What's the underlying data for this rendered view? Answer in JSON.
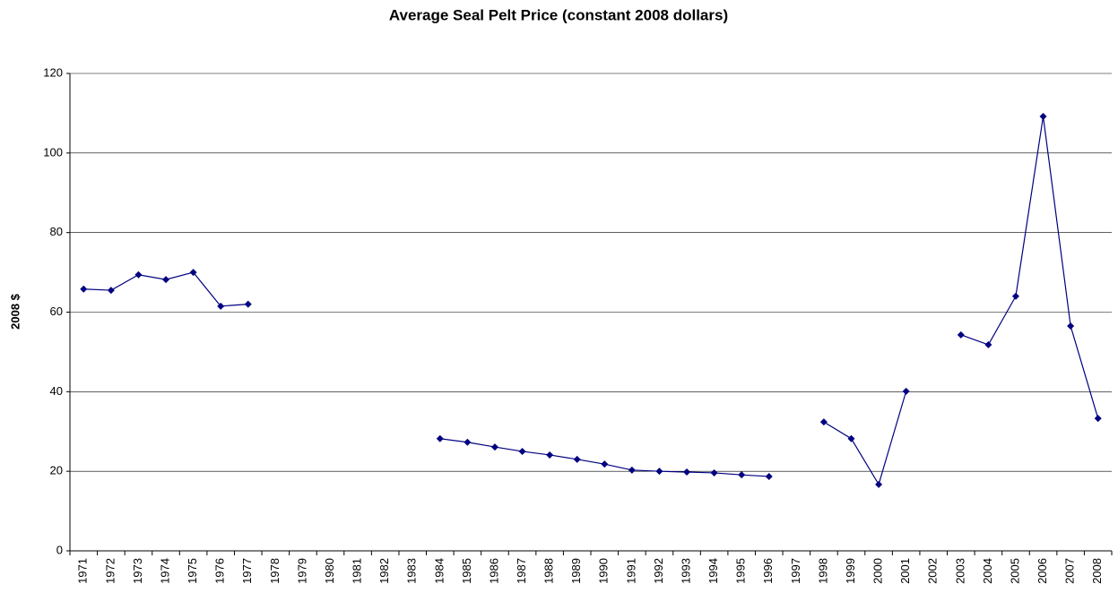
{
  "chart_data": {
    "type": "line",
    "title": "Average Seal Pelt Price (constant 2008 dollars)",
    "y_label": "2008 $",
    "categories": [
      "1971",
      "1972",
      "1973",
      "1974",
      "1975",
      "1976",
      "1977",
      "1978",
      "1979",
      "1980",
      "1981",
      "1982",
      "1983",
      "1984",
      "1985",
      "1986",
      "1987",
      "1988",
      "1989",
      "1990",
      "1991",
      "1992",
      "1993",
      "1994",
      "1995",
      "1996",
      "1997",
      "1998",
      "1999",
      "2000",
      "2001",
      "2002",
      "2003",
      "2004",
      "2005",
      "2006",
      "2007",
      "2008"
    ],
    "series": [
      {
        "name": "Average Seal Pelt Price",
        "color": "#000080",
        "values": [
          65.8,
          65.5,
          69.4,
          68.2,
          70.0,
          61.5,
          62.0,
          null,
          null,
          null,
          null,
          null,
          null,
          28.2,
          27.3,
          26.1,
          25.0,
          24.1,
          23.0,
          21.8,
          20.3,
          20.0,
          19.8,
          19.6,
          19.1,
          18.7,
          null,
          32.4,
          28.2,
          16.7,
          40.1,
          null,
          54.3,
          51.8,
          64.0,
          109.2,
          56.5,
          33.3
        ]
      }
    ],
    "ylim": [
      0,
      120
    ],
    "yticks": [
      0,
      20,
      40,
      60,
      80,
      100,
      120
    ],
    "grid": true,
    "legend": false
  }
}
